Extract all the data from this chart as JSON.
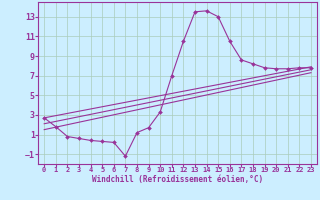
{
  "xlabel": "Windchill (Refroidissement éolien,°C)",
  "background_color": "#cceeff",
  "line_color": "#993399",
  "grid_color": "#aaccbb",
  "xlim": [
    -0.5,
    23.5
  ],
  "ylim": [
    -2.0,
    14.5
  ],
  "xticks": [
    0,
    1,
    2,
    3,
    4,
    5,
    6,
    7,
    8,
    9,
    10,
    11,
    12,
    13,
    14,
    15,
    16,
    17,
    18,
    19,
    20,
    21,
    22,
    23
  ],
  "yticks": [
    -1,
    1,
    3,
    5,
    7,
    9,
    11,
    13
  ],
  "main_x": [
    0,
    1,
    2,
    3,
    4,
    5,
    6,
    7,
    8,
    9,
    10,
    11,
    12,
    13,
    14,
    15,
    16,
    17,
    18,
    19,
    20,
    21,
    22,
    23
  ],
  "main_y": [
    2.7,
    1.8,
    0.8,
    0.6,
    0.4,
    0.3,
    0.2,
    -1.2,
    1.2,
    1.7,
    3.3,
    7.0,
    10.5,
    13.5,
    13.6,
    13.0,
    10.5,
    8.6,
    8.2,
    7.8,
    7.7,
    7.7,
    7.8,
    7.8
  ],
  "line2_x": [
    0,
    23
  ],
  "line2_y": [
    2.7,
    7.9
  ],
  "line3_x": [
    0,
    23
  ],
  "line3_y": [
    2.1,
    7.6
  ],
  "line4_x": [
    0,
    23
  ],
  "line4_y": [
    1.5,
    7.3
  ]
}
